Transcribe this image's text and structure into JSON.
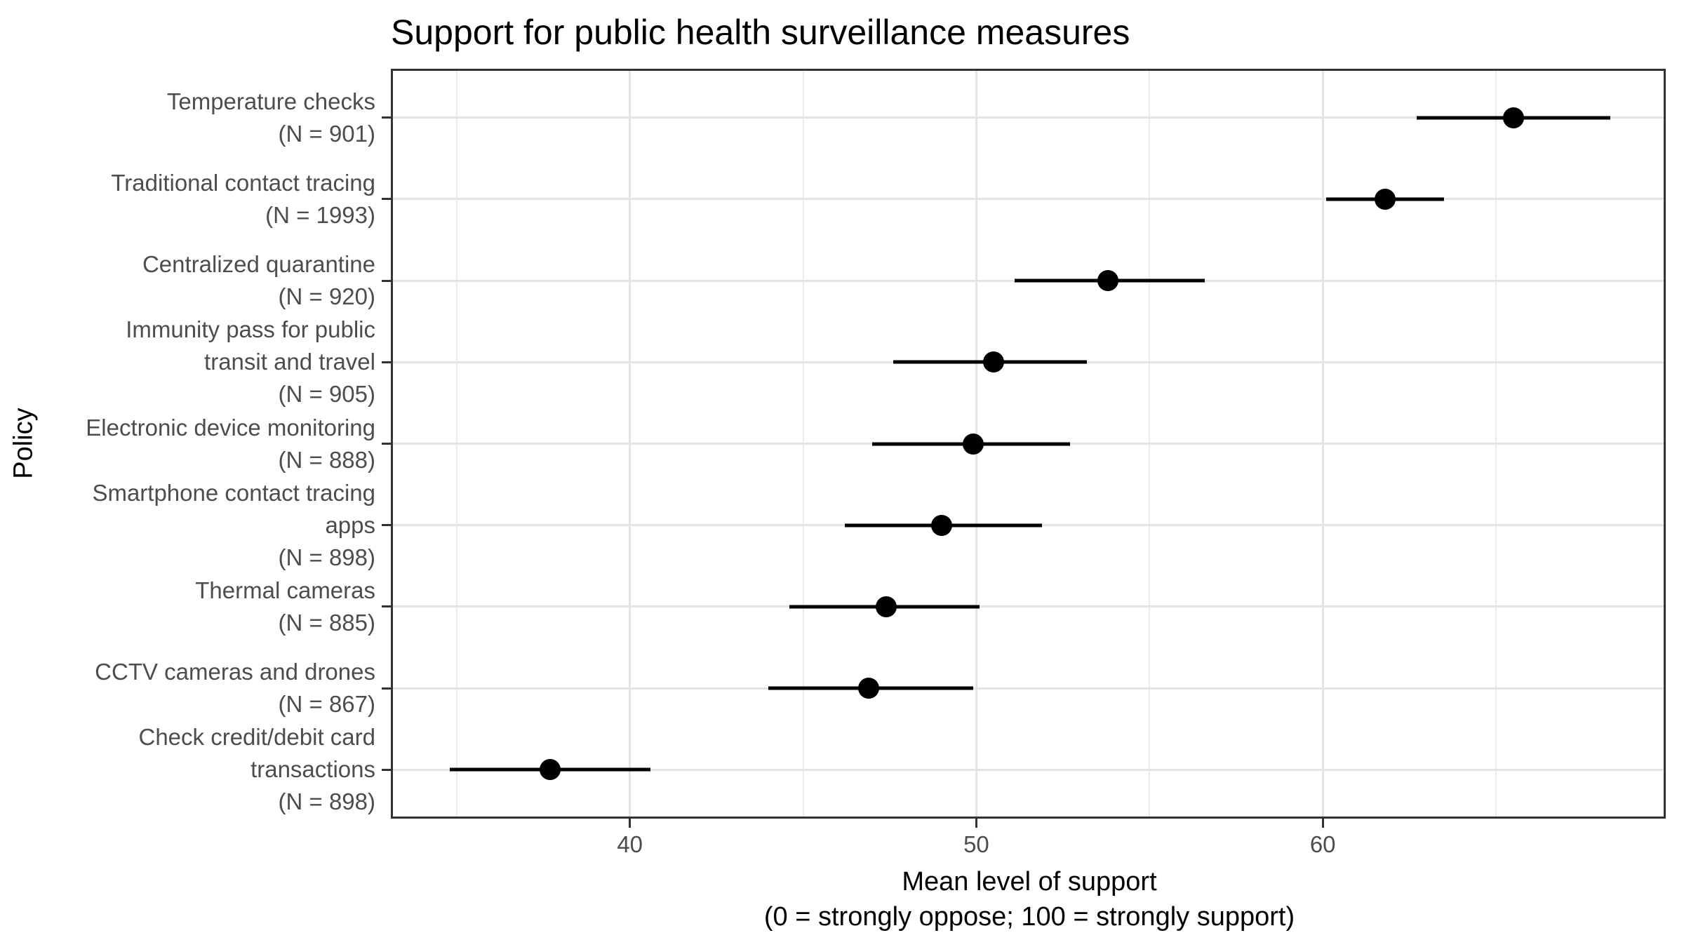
{
  "title": "Support for public health surveillance measures",
  "chart_data": {
    "type": "scatter",
    "subtype": "horizontal-pointrange (mean with confidence interval)",
    "title": "Support for public health surveillance measures",
    "xlabel": "Mean level of support",
    "xlabel_line2": "(0 = strongly oppose; 100 = strongly support)",
    "ylabel": "Policy",
    "xlim": [
      33.1,
      69.9
    ],
    "x_major_ticks": [
      40,
      50,
      60
    ],
    "x_minor_gridlines": [
      35,
      45,
      55,
      65
    ],
    "grid": "vertical major+minor light gray, horizontal major per category",
    "legend": "none",
    "points": [
      {
        "category": "Temperature checks",
        "label_lines": [
          "Temperature checks",
          "(N = 901)"
        ],
        "n": 901,
        "mean": 65.5,
        "ci_low": 62.7,
        "ci_high": 68.3
      },
      {
        "category": "Traditional contact tracing",
        "label_lines": [
          "Traditional contact tracing",
          "(N = 1993)"
        ],
        "n": 1993,
        "mean": 61.8,
        "ci_low": 60.1,
        "ci_high": 63.5
      },
      {
        "category": "Centralized quarantine",
        "label_lines": [
          "Centralized quarantine",
          "(N = 920)"
        ],
        "n": 920,
        "mean": 53.8,
        "ci_low": 51.1,
        "ci_high": 56.6
      },
      {
        "category": "Immunity pass for public transit and travel",
        "label_lines": [
          "Immunity pass for public",
          "transit and travel",
          "(N = 905)"
        ],
        "n": 905,
        "mean": 50.5,
        "ci_low": 47.6,
        "ci_high": 53.2
      },
      {
        "category": "Electronic device monitoring",
        "label_lines": [
          "Electronic device monitoring",
          "(N = 888)"
        ],
        "n": 888,
        "mean": 49.9,
        "ci_low": 47.0,
        "ci_high": 52.7
      },
      {
        "category": "Smartphone contact tracing apps",
        "label_lines": [
          "Smartphone contact tracing",
          "apps",
          "(N = 898)"
        ],
        "n": 898,
        "mean": 49.0,
        "ci_low": 46.2,
        "ci_high": 51.9
      },
      {
        "category": "Thermal cameras",
        "label_lines": [
          "Thermal cameras",
          "(N = 885)"
        ],
        "n": 885,
        "mean": 47.4,
        "ci_low": 44.6,
        "ci_high": 50.1
      },
      {
        "category": "CCTV cameras and drones",
        "label_lines": [
          "CCTV cameras and drones",
          "(N = 867)"
        ],
        "n": 867,
        "mean": 46.9,
        "ci_low": 44.0,
        "ci_high": 49.9
      },
      {
        "category": "Check credit/debit card transactions",
        "label_lines": [
          "Check credit/debit card",
          "transactions",
          "(N = 898)"
        ],
        "n": 898,
        "mean": 37.7,
        "ci_low": 34.8,
        "ci_high": 40.6
      }
    ]
  },
  "colors": {
    "point": "#000000",
    "error_bar": "#000000",
    "panel_border": "#333333",
    "grid_major": "#e4e4e4",
    "grid_minor": "#ececec",
    "axis_text": "#4d4d4d",
    "axis_title_text": "#000000",
    "title_text": "#000000",
    "background": "#ffffff"
  }
}
